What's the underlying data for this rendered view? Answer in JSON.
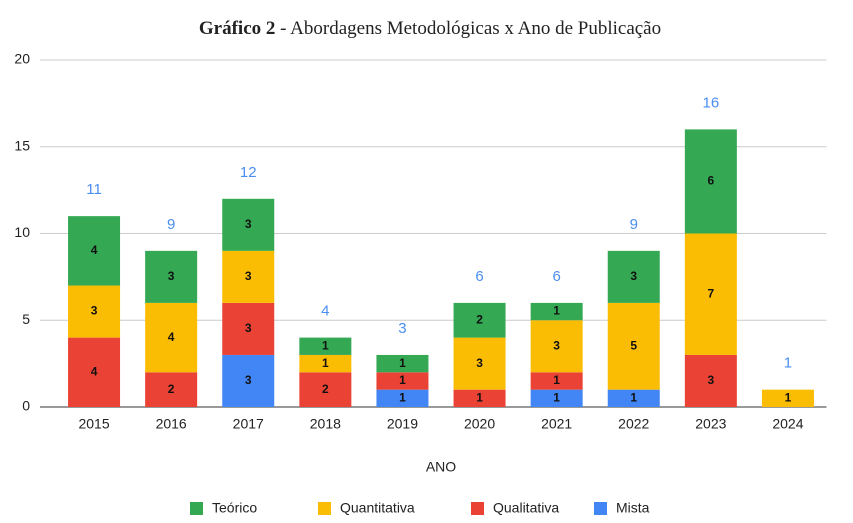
{
  "chart_data": {
    "type": "stacked_bar",
    "title": {
      "bold": "Gráfico 2",
      "rest": " - Abordagens Metodológicas x Ano de Publicação"
    },
    "x_label": "ANO",
    "categories": [
      "2015",
      "2016",
      "2017",
      "2018",
      "2019",
      "2020",
      "2021",
      "2022",
      "2023",
      "2024"
    ],
    "series": [
      {
        "name": "Teórico",
        "color": "#34a853",
        "values": [
          4,
          3,
          3,
          1,
          1,
          2,
          1,
          3,
          6,
          null
        ]
      },
      {
        "name": "Quantitativa",
        "color": "#fbbc04",
        "values": [
          3,
          4,
          3,
          1,
          null,
          3,
          3,
          5,
          7,
          1
        ]
      },
      {
        "name": "Qualitativa",
        "color": "#ea4335",
        "values": [
          4,
          2,
          3,
          2,
          1,
          1,
          1,
          null,
          3,
          null
        ]
      },
      {
        "name": "Mista",
        "color": "#4285f4",
        "values": [
          null,
          null,
          3,
          null,
          1,
          null,
          1,
          1,
          null,
          null
        ]
      }
    ],
    "totals": [
      11,
      9,
      12,
      4,
      3,
      6,
      6,
      9,
      16,
      1
    ],
    "totals_color": "#4a8ef0",
    "ylim": [
      0,
      20
    ],
    "yticks": [
      0,
      5,
      10,
      15,
      20
    ],
    "grid": true,
    "legend": "bottom"
  }
}
